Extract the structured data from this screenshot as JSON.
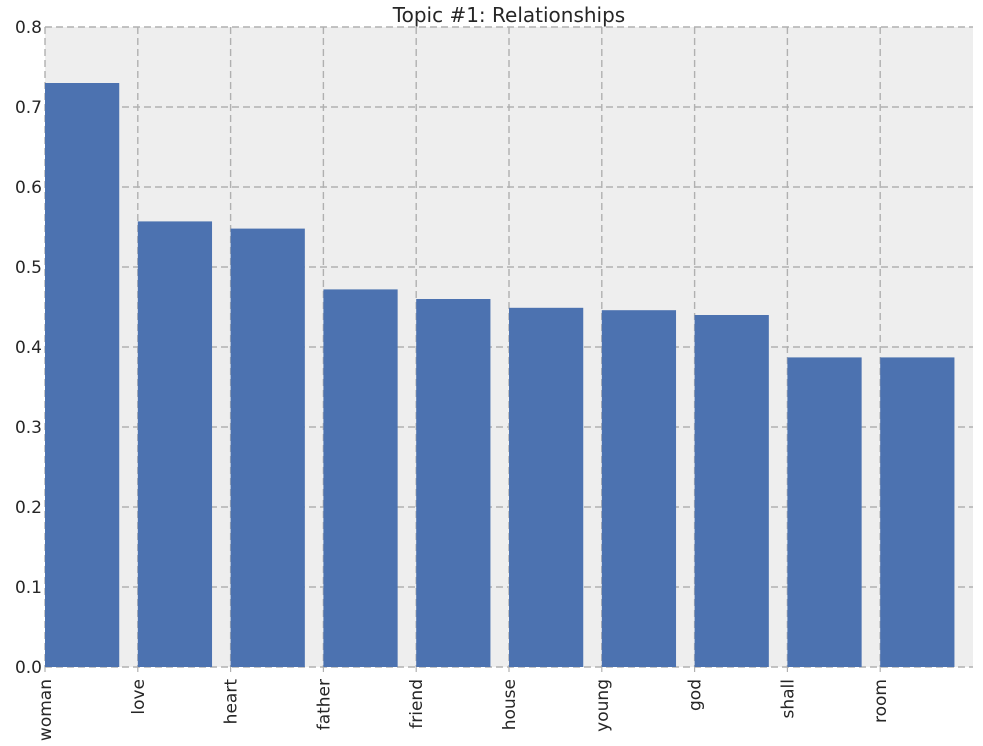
{
  "chart_data": {
    "type": "bar",
    "title": "Topic #1: Relationships",
    "xlabel": "",
    "ylabel": "",
    "categories": [
      "woman",
      "love",
      "heart",
      "father",
      "friend",
      "house",
      "young",
      "god",
      "shall",
      "room"
    ],
    "values": [
      0.73,
      0.557,
      0.548,
      0.472,
      0.46,
      0.449,
      0.446,
      0.44,
      0.387,
      0.387
    ],
    "ylim": [
      0,
      0.8
    ],
    "yticks": [
      "0.0",
      "0.1",
      "0.2",
      "0.3",
      "0.4",
      "0.5",
      "0.6",
      "0.7",
      "0.8"
    ],
    "grid": true,
    "colors": {
      "bar": "#4c72b0",
      "plot_background": "#eeeeee",
      "grid": "#b0b0b0",
      "text": "#262626"
    }
  }
}
